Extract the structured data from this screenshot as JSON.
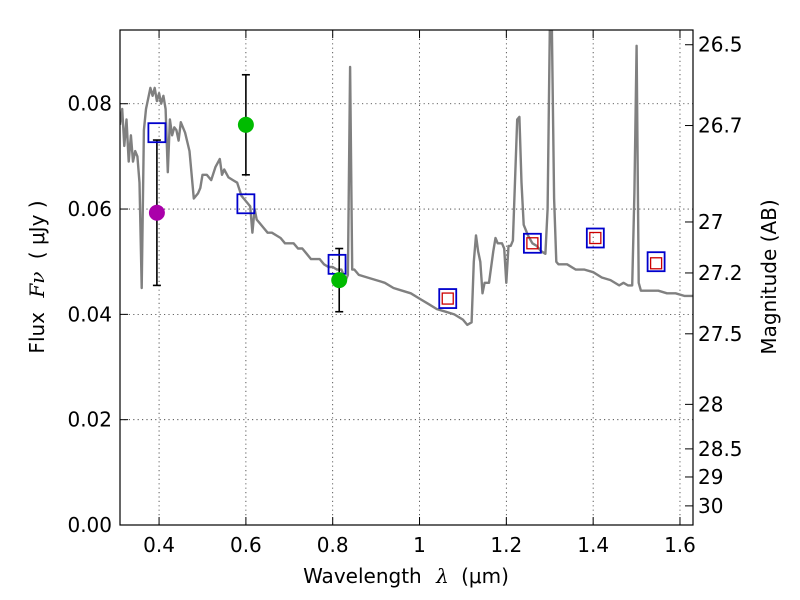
{
  "chart_data": {
    "type": "scatter",
    "title": "",
    "xlabel_prefix": "Wavelength",
    "xlabel_symbol": "λ",
    "xlabel_unit": "(μm)",
    "ylabel_prefix": "Flux",
    "ylabel_symbol": "Fν",
    "ylabel_unit": "( μJy )",
    "y2label": "Magnitude (AB)",
    "xlim": [
      0.31,
      1.63
    ],
    "ylim": [
      0.0,
      0.094
    ],
    "grid": true,
    "x_ticks": [
      {
        "value": 0.4,
        "label": "0.4"
      },
      {
        "value": 0.6,
        "label": "0.6"
      },
      {
        "value": 0.8,
        "label": "0.8"
      },
      {
        "value": 1.0,
        "label": "1"
      },
      {
        "value": 1.2,
        "label": "1.2"
      },
      {
        "value": 1.4,
        "label": "1.4"
      },
      {
        "value": 1.6,
        "label": "1.6"
      }
    ],
    "y_ticks": [
      {
        "value": 0.0,
        "label": "0.00"
      },
      {
        "value": 0.02,
        "label": "0.02"
      },
      {
        "value": 0.04,
        "label": "0.04"
      },
      {
        "value": 0.06,
        "label": "0.06"
      },
      {
        "value": 0.08,
        "label": "0.08"
      }
    ],
    "y2_ticks": [
      {
        "value": 26.5,
        "label": "26.5"
      },
      {
        "value": 26.7,
        "label": "26.7"
      },
      {
        "value": 27.0,
        "label": "27"
      },
      {
        "value": 27.2,
        "label": "27.2"
      },
      {
        "value": 27.5,
        "label": "27.5"
      },
      {
        "value": 28.0,
        "label": "28"
      },
      {
        "value": 28.5,
        "label": "28.5"
      },
      {
        "value": 29.0,
        "label": "29"
      },
      {
        "value": 30.0,
        "label": "30"
      }
    ],
    "series": [
      {
        "name": "model-sed",
        "kind": "line",
        "color": "#808080",
        "points": [
          [
            0.31,
            0.076
          ],
          [
            0.315,
            0.079
          ],
          [
            0.32,
            0.072
          ],
          [
            0.325,
            0.077
          ],
          [
            0.33,
            0.069
          ],
          [
            0.335,
            0.074
          ],
          [
            0.34,
            0.069
          ],
          [
            0.345,
            0.071
          ],
          [
            0.35,
            0.07
          ],
          [
            0.355,
            0.065
          ],
          [
            0.36,
            0.045
          ],
          [
            0.365,
            0.075
          ],
          [
            0.37,
            0.079
          ],
          [
            0.375,
            0.081
          ],
          [
            0.38,
            0.083
          ],
          [
            0.385,
            0.0815
          ],
          [
            0.39,
            0.083
          ],
          [
            0.395,
            0.0805
          ],
          [
            0.4,
            0.082
          ],
          [
            0.405,
            0.08
          ],
          [
            0.41,
            0.0815
          ],
          [
            0.415,
            0.079
          ],
          [
            0.42,
            0.067
          ],
          [
            0.425,
            0.077
          ],
          [
            0.43,
            0.074
          ],
          [
            0.435,
            0.0755
          ],
          [
            0.44,
            0.075
          ],
          [
            0.445,
            0.073
          ],
          [
            0.45,
            0.0765
          ],
          [
            0.46,
            0.0745
          ],
          [
            0.47,
            0.071
          ],
          [
            0.48,
            0.062
          ],
          [
            0.49,
            0.063
          ],
          [
            0.495,
            0.064
          ],
          [
            0.5,
            0.0665
          ],
          [
            0.51,
            0.0665
          ],
          [
            0.52,
            0.0655
          ],
          [
            0.53,
            0.068
          ],
          [
            0.54,
            0.0695
          ],
          [
            0.545,
            0.0665
          ],
          [
            0.55,
            0.0675
          ],
          [
            0.56,
            0.066
          ],
          [
            0.57,
            0.0655
          ],
          [
            0.58,
            0.065
          ],
          [
            0.59,
            0.0625
          ],
          [
            0.6,
            0.0615
          ],
          [
            0.61,
            0.0605
          ],
          [
            0.615,
            0.0555
          ],
          [
            0.62,
            0.06
          ],
          [
            0.625,
            0.058
          ],
          [
            0.63,
            0.0575
          ],
          [
            0.64,
            0.0565
          ],
          [
            0.65,
            0.0555
          ],
          [
            0.66,
            0.0555
          ],
          [
            0.67,
            0.055
          ],
          [
            0.68,
            0.0545
          ],
          [
            0.69,
            0.0535
          ],
          [
            0.7,
            0.0535
          ],
          [
            0.71,
            0.0535
          ],
          [
            0.72,
            0.0525
          ],
          [
            0.73,
            0.0525
          ],
          [
            0.74,
            0.0515
          ],
          [
            0.75,
            0.0505
          ],
          [
            0.76,
            0.0505
          ],
          [
            0.77,
            0.0505
          ],
          [
            0.78,
            0.0495
          ],
          [
            0.79,
            0.049
          ],
          [
            0.8,
            0.049
          ],
          [
            0.81,
            0.0485
          ],
          [
            0.82,
            0.0485
          ],
          [
            0.83,
            0.0465
          ],
          [
            0.835,
            0.0475
          ],
          [
            0.84,
            0.087
          ],
          [
            0.845,
            0.0485
          ],
          [
            0.85,
            0.0485
          ],
          [
            0.86,
            0.0475
          ],
          [
            0.88,
            0.047
          ],
          [
            0.9,
            0.0465
          ],
          [
            0.92,
            0.046
          ],
          [
            0.94,
            0.045
          ],
          [
            0.96,
            0.0445
          ],
          [
            0.98,
            0.044
          ],
          [
            1.0,
            0.043
          ],
          [
            1.02,
            0.042
          ],
          [
            1.04,
            0.041
          ],
          [
            1.06,
            0.0405
          ],
          [
            1.08,
            0.04
          ],
          [
            1.1,
            0.039
          ],
          [
            1.11,
            0.038
          ],
          [
            1.12,
            0.0385
          ],
          [
            1.125,
            0.05
          ],
          [
            1.13,
            0.055
          ],
          [
            1.135,
            0.052
          ],
          [
            1.14,
            0.05
          ],
          [
            1.145,
            0.044
          ],
          [
            1.15,
            0.046
          ],
          [
            1.16,
            0.046
          ],
          [
            1.17,
            0.052
          ],
          [
            1.175,
            0.0545
          ],
          [
            1.18,
            0.0535
          ],
          [
            1.19,
            0.0535
          ],
          [
            1.195,
            0.0525
          ],
          [
            1.2,
            0.046
          ],
          [
            1.205,
            0.053
          ],
          [
            1.21,
            0.053
          ],
          [
            1.215,
            0.054
          ],
          [
            1.225,
            0.077
          ],
          [
            1.23,
            0.0775
          ],
          [
            1.235,
            0.065
          ],
          [
            1.24,
            0.057
          ],
          [
            1.25,
            0.055
          ],
          [
            1.26,
            0.0535
          ],
          [
            1.27,
            0.053
          ],
          [
            1.28,
            0.052
          ],
          [
            1.29,
            0.0515
          ],
          [
            1.295,
            0.06
          ],
          [
            1.3,
            0.094
          ],
          [
            1.305,
            0.094
          ],
          [
            1.31,
            0.062
          ],
          [
            1.315,
            0.05
          ],
          [
            1.32,
            0.0495
          ],
          [
            1.34,
            0.0495
          ],
          [
            1.36,
            0.0485
          ],
          [
            1.38,
            0.0485
          ],
          [
            1.4,
            0.048
          ],
          [
            1.42,
            0.047
          ],
          [
            1.44,
            0.0465
          ],
          [
            1.46,
            0.0455
          ],
          [
            1.47,
            0.046
          ],
          [
            1.48,
            0.0455
          ],
          [
            1.49,
            0.0455
          ],
          [
            1.495,
            0.063
          ],
          [
            1.5,
            0.091
          ],
          [
            1.505,
            0.046
          ],
          [
            1.51,
            0.0445
          ],
          [
            1.53,
            0.0445
          ],
          [
            1.55,
            0.0445
          ],
          [
            1.57,
            0.044
          ],
          [
            1.59,
            0.044
          ],
          [
            1.61,
            0.0435
          ],
          [
            1.63,
            0.0435
          ]
        ]
      },
      {
        "name": "model-photometry",
        "kind": "square",
        "color": "#0000cc",
        "points": [
          [
            0.395,
            0.0745
          ],
          [
            0.6,
            0.061
          ],
          [
            0.81,
            0.0495
          ],
          [
            1.065,
            0.043
          ],
          [
            1.26,
            0.0535
          ],
          [
            1.405,
            0.0545
          ],
          [
            1.545,
            0.05
          ]
        ]
      },
      {
        "name": "observed-upper-limits",
        "kind": "small-square",
        "color": "#cc0000",
        "points": [
          [
            1.065,
            0.043
          ],
          [
            1.26,
            0.0535
          ],
          [
            1.405,
            0.0545
          ],
          [
            1.545,
            0.0497
          ]
        ]
      },
      {
        "name": "observed-green",
        "kind": "dot",
        "color": "#00bb00",
        "points": [
          [
            0.6,
            0.076,
            0.0095
          ],
          [
            0.815,
            0.0465,
            0.006
          ]
        ]
      },
      {
        "name": "observed-magenta",
        "kind": "dot",
        "color": "#aa00aa",
        "points": [
          [
            0.395,
            0.0593,
            0.0138
          ]
        ]
      }
    ]
  }
}
